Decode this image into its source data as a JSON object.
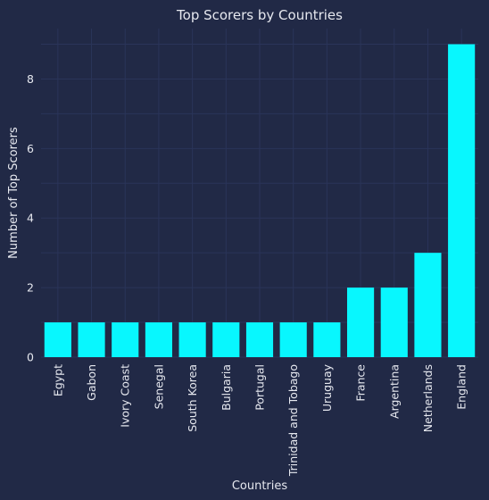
{
  "chart_data": {
    "type": "bar",
    "title": "Top Scorers by Countries",
    "xlabel": "Countries",
    "ylabel": "Number of Top Scorers",
    "categories": [
      "Egypt",
      "Gabon",
      "Ivory Coast",
      "Senegal",
      "South Korea",
      "Bulgaria",
      "Portugal",
      "Trinidad and Tobago",
      "Uruguay",
      "France",
      "Argentina",
      "Netherlands",
      "England"
    ],
    "values": [
      1,
      1,
      1,
      1,
      1,
      1,
      1,
      1,
      1,
      2,
      2,
      3,
      9
    ],
    "ylim": [
      0,
      9.45
    ],
    "yticks": [
      0,
      2,
      4,
      6,
      8
    ],
    "grid": true,
    "legend": "none",
    "colors": {
      "background": "#212946",
      "bar": "#08f7fe",
      "grid": "#2a3459",
      "text": "#e6e8ef"
    }
  }
}
